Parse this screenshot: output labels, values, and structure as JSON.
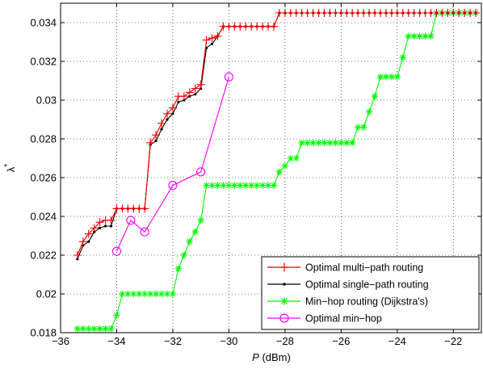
{
  "chart_data": {
    "type": "line",
    "title": "",
    "xlabel_italic": "P",
    "xlabel_rest": " (dBm)",
    "ylabel": "λ",
    "ylabel_sup": "*",
    "xlim": [
      -36,
      -21
    ],
    "ylim": [
      0.018,
      0.035
    ],
    "x_ticks": [
      -36,
      -34,
      -32,
      -30,
      -28,
      -26,
      -24,
      -22
    ],
    "x_tick_labels": [
      "−36",
      "−34",
      "−32",
      "−30",
      "−28",
      "−26",
      "−24",
      "−22"
    ],
    "y_ticks": [
      0.018,
      0.02,
      0.022,
      0.024,
      0.026,
      0.028,
      0.03,
      0.032,
      0.034
    ],
    "y_tick_labels": [
      "0.018",
      "0.02",
      "0.022",
      "0.024",
      "0.026",
      "0.028",
      "0.03",
      "0.032",
      "0.034"
    ],
    "grid": true,
    "legend_position": "bottom-right",
    "series": [
      {
        "name": "Optimal multi−path routing",
        "color": "#ff0000",
        "marker": "plus",
        "x": [
          -35.4,
          -35.2,
          -35.0,
          -34.8,
          -34.6,
          -34.4,
          -34.2,
          -34.0,
          -33.8,
          -33.6,
          -33.4,
          -33.2,
          -33.0,
          -32.8,
          -32.6,
          -32.4,
          -32.2,
          -32.0,
          -31.8,
          -31.6,
          -31.4,
          -31.2,
          -31.0,
          -30.8,
          -30.6,
          -30.4,
          -30.2,
          -30.0,
          -29.8,
          -29.6,
          -29.4,
          -29.2,
          -29.0,
          -28.8,
          -28.6,
          -28.4,
          -28.2,
          -28.0,
          -27.8,
          -27.6,
          -27.4,
          -27.2,
          -27.0,
          -26.8,
          -26.6,
          -26.4,
          -26.2,
          -26.0,
          -25.8,
          -25.6,
          -25.4,
          -25.2,
          -25.0,
          -24.8,
          -24.6,
          -24.4,
          -24.2,
          -24.0,
          -23.8,
          -23.6,
          -23.4,
          -23.2,
          -23.0,
          -22.8,
          -22.6,
          -22.4,
          -22.2,
          -22.0,
          -21.8,
          -21.6,
          -21.4,
          -21.2
        ],
        "y": [
          0.022,
          0.0227,
          0.0231,
          0.0234,
          0.0237,
          0.0238,
          0.0238,
          0.0244,
          0.0244,
          0.0244,
          0.0244,
          0.0244,
          0.0244,
          0.0278,
          0.0282,
          0.0288,
          0.0293,
          0.0296,
          0.0302,
          0.0302,
          0.0304,
          0.0306,
          0.0308,
          0.0331,
          0.0332,
          0.0333,
          0.0338,
          0.0338,
          0.0338,
          0.0338,
          0.0338,
          0.0338,
          0.0338,
          0.0338,
          0.0338,
          0.0338,
          0.0345,
          0.0345,
          0.0345,
          0.0345,
          0.0345,
          0.0345,
          0.0345,
          0.0345,
          0.0345,
          0.0345,
          0.0345,
          0.0345,
          0.0345,
          0.0345,
          0.0345,
          0.0345,
          0.0345,
          0.0345,
          0.0345,
          0.0345,
          0.0345,
          0.0345,
          0.0345,
          0.0345,
          0.0345,
          0.0345,
          0.0345,
          0.0345,
          0.0345,
          0.0345,
          0.0345,
          0.0345,
          0.0345,
          0.0345,
          0.0345,
          0.0345
        ]
      },
      {
        "name": "Optimal single−path routing",
        "color": "#000000",
        "marker": "dot",
        "x": [
          -35.4,
          -35.2,
          -35.0,
          -34.8,
          -34.6,
          -34.4,
          -34.2,
          -34.0,
          -33.8,
          -33.6,
          -33.4,
          -33.2,
          -33.0,
          -32.8,
          -32.6,
          -32.4,
          -32.2,
          -32.0,
          -31.8,
          -31.6,
          -31.4,
          -31.2,
          -31.0,
          -30.8,
          -30.6,
          -30.4,
          -30.2,
          -30.0,
          -29.8,
          -29.6,
          -29.4,
          -29.2,
          -29.0,
          -28.8,
          -28.6,
          -28.4,
          -28.2,
          -28.0,
          -27.8,
          -27.6,
          -27.4,
          -27.2,
          -27.0,
          -26.8,
          -26.6,
          -26.4,
          -26.2,
          -26.0,
          -25.8,
          -25.6,
          -25.4,
          -25.2,
          -25.0,
          -24.8,
          -24.6,
          -24.4,
          -24.2,
          -24.0,
          -23.8,
          -23.6,
          -23.4,
          -23.2,
          -23.0,
          -22.8,
          -22.6,
          -22.4,
          -22.2,
          -22.0,
          -21.8,
          -21.6,
          -21.4,
          -21.2
        ],
        "y": [
          0.0218,
          0.0225,
          0.0227,
          0.0232,
          0.0234,
          0.0235,
          0.0235,
          0.0244,
          0.0244,
          0.0244,
          0.0244,
          0.0244,
          0.0244,
          0.0277,
          0.0279,
          0.0285,
          0.029,
          0.0293,
          0.0299,
          0.03,
          0.0302,
          0.0303,
          0.0306,
          0.0327,
          0.0329,
          0.0333,
          0.0338,
          0.0338,
          0.0338,
          0.0338,
          0.0338,
          0.0338,
          0.0338,
          0.0338,
          0.0338,
          0.0338,
          0.0345,
          0.0345,
          0.0345,
          0.0345,
          0.0345,
          0.0345,
          0.0345,
          0.0345,
          0.0345,
          0.0345,
          0.0345,
          0.0345,
          0.0345,
          0.0345,
          0.0345,
          0.0345,
          0.0345,
          0.0345,
          0.0345,
          0.0345,
          0.0345,
          0.0345,
          0.0345,
          0.0345,
          0.0345,
          0.0345,
          0.0345,
          0.0345,
          0.0345,
          0.0345,
          0.0345,
          0.0345,
          0.0345,
          0.0345,
          0.0345,
          0.0345
        ]
      },
      {
        "name": "Min−hop routing (Dijkstra's)",
        "color": "#00ff00",
        "marker": "asterisk",
        "x": [
          -35.4,
          -35.2,
          -35.0,
          -34.8,
          -34.6,
          -34.4,
          -34.2,
          -34.0,
          -33.8,
          -33.6,
          -33.4,
          -33.2,
          -33.0,
          -32.8,
          -32.6,
          -32.4,
          -32.2,
          -32.0,
          -31.8,
          -31.6,
          -31.4,
          -31.2,
          -31.0,
          -30.8,
          -30.6,
          -30.4,
          -30.2,
          -30.0,
          -29.8,
          -29.6,
          -29.4,
          -29.2,
          -29.0,
          -28.8,
          -28.6,
          -28.4,
          -28.2,
          -28.0,
          -27.8,
          -27.6,
          -27.4,
          -27.2,
          -27.0,
          -26.8,
          -26.6,
          -26.4,
          -26.2,
          -26.0,
          -25.8,
          -25.6,
          -25.4,
          -25.2,
          -25.0,
          -24.8,
          -24.6,
          -24.4,
          -24.2,
          -24.0,
          -23.8,
          -23.6,
          -23.4,
          -23.2,
          -23.0,
          -22.8,
          -22.6,
          -22.4,
          -22.2,
          -22.0,
          -21.8,
          -21.6,
          -21.4,
          -21.2
        ],
        "y": [
          0.0182,
          0.0182,
          0.0182,
          0.0182,
          0.0182,
          0.0182,
          0.0182,
          0.0189,
          0.02,
          0.02,
          0.02,
          0.02,
          0.02,
          0.02,
          0.02,
          0.02,
          0.02,
          0.02,
          0.0213,
          0.022,
          0.0227,
          0.0232,
          0.0238,
          0.0256,
          0.0256,
          0.0256,
          0.0256,
          0.0256,
          0.0256,
          0.0256,
          0.0256,
          0.0256,
          0.0256,
          0.0256,
          0.0256,
          0.0256,
          0.0263,
          0.0266,
          0.027,
          0.027,
          0.0278,
          0.0278,
          0.0278,
          0.0278,
          0.0278,
          0.0278,
          0.0278,
          0.0278,
          0.0278,
          0.0278,
          0.0286,
          0.0286,
          0.0294,
          0.0302,
          0.0312,
          0.0312,
          0.0312,
          0.0312,
          0.0322,
          0.0333,
          0.0333,
          0.0333,
          0.0333,
          0.0333,
          0.0345,
          0.0345,
          0.0345,
          0.0345,
          0.0345,
          0.0345,
          0.0345,
          0.0345
        ]
      },
      {
        "name": "Optimal min−hop",
        "color": "#ff00ff",
        "marker": "circle",
        "x": [
          -34.0,
          -33.5,
          -33.0,
          -32.0,
          -31.0,
          -30.0
        ],
        "y": [
          0.0222,
          0.0238,
          0.0232,
          0.0256,
          0.0263,
          0.0312
        ]
      }
    ]
  }
}
